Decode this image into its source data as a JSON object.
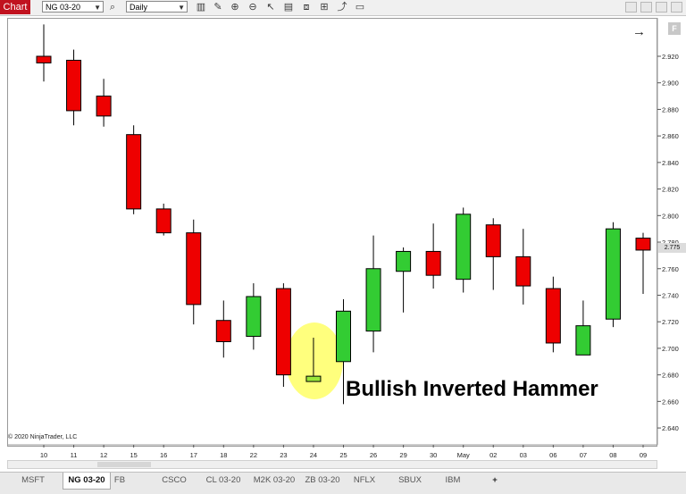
{
  "toolbar": {
    "chart_label": "Chart",
    "instrument": "NG 03-20",
    "interval": "Daily"
  },
  "tabs": [
    "MSFT",
    "NG 03-20",
    "FB",
    "CSCO",
    "CL 03-20",
    "M2K 03-20",
    "ZB 03-20",
    "NFLX",
    "SBUX",
    "IBM"
  ],
  "active_tab": 1,
  "add_tab_label": "+",
  "copyright": "© 2020 NinjaTrader, LLC",
  "f_button": "F",
  "current_price_label": "2.775",
  "chart_data": {
    "type": "candlestick",
    "title": "",
    "xlabel": "",
    "ylabel": "",
    "ylim": [
      2.631,
      2.948
    ],
    "y_ticks": [
      "2.920",
      "2.900",
      "2.880",
      "2.860",
      "2.840",
      "2.820",
      "2.800",
      "2.780",
      "2.760",
      "2.740",
      "2.720",
      "2.700",
      "2.680",
      "2.660",
      "2.640"
    ],
    "categories": [
      "10",
      "11",
      "12",
      "15",
      "16",
      "17",
      "18",
      "22",
      "23",
      "24",
      "25",
      "26",
      "29",
      "30",
      "May",
      "02",
      "03",
      "06",
      "07",
      "08",
      "09"
    ],
    "series": [
      {
        "x": "10",
        "open": 2.92,
        "high": 2.944,
        "low": 2.901,
        "close": 2.915
      },
      {
        "x": "11",
        "open": 2.917,
        "high": 2.925,
        "low": 2.868,
        "close": 2.879
      },
      {
        "x": "12",
        "open": 2.89,
        "high": 2.903,
        "low": 2.867,
        "close": 2.875
      },
      {
        "x": "15",
        "open": 2.861,
        "high": 2.868,
        "low": 2.801,
        "close": 2.805
      },
      {
        "x": "16",
        "open": 2.805,
        "high": 2.809,
        "low": 2.785,
        "close": 2.787
      },
      {
        "x": "17",
        "open": 2.787,
        "high": 2.797,
        "low": 2.718,
        "close": 2.733
      },
      {
        "x": "18",
        "open": 2.721,
        "high": 2.736,
        "low": 2.693,
        "close": 2.705
      },
      {
        "x": "22",
        "open": 2.709,
        "high": 2.749,
        "low": 2.699,
        "close": 2.739
      },
      {
        "x": "23",
        "open": 2.745,
        "high": 2.749,
        "low": 2.671,
        "close": 2.68
      },
      {
        "x": "24",
        "open": 2.675,
        "high": 2.708,
        "low": 2.675,
        "close": 2.679
      },
      {
        "x": "25",
        "open": 2.69,
        "high": 2.737,
        "low": 2.658,
        "close": 2.728
      },
      {
        "x": "26",
        "open": 2.713,
        "high": 2.785,
        "low": 2.697,
        "close": 2.76
      },
      {
        "x": "29",
        "open": 2.758,
        "high": 2.776,
        "low": 2.727,
        "close": 2.773
      },
      {
        "x": "30",
        "open": 2.773,
        "high": 2.794,
        "low": 2.745,
        "close": 2.755
      },
      {
        "x": "May",
        "open": 2.752,
        "high": 2.806,
        "low": 2.742,
        "close": 2.801
      },
      {
        "x": "02",
        "open": 2.793,
        "high": 2.798,
        "low": 2.744,
        "close": 2.769
      },
      {
        "x": "03",
        "open": 2.769,
        "high": 2.79,
        "low": 2.733,
        "close": 2.747
      },
      {
        "x": "06",
        "open": 2.745,
        "high": 2.754,
        "low": 2.697,
        "close": 2.704
      },
      {
        "x": "07",
        "open": 2.695,
        "high": 2.736,
        "low": 2.695,
        "close": 2.717
      },
      {
        "x": "08",
        "open": 2.722,
        "high": 2.795,
        "low": 2.716,
        "close": 2.79
      },
      {
        "x": "09",
        "open": 2.783,
        "high": 2.787,
        "low": 2.741,
        "close": 2.774
      }
    ],
    "highlight": {
      "x": "24",
      "label": "Bullish Inverted Hammer"
    },
    "colors": {
      "up": "#33cc33",
      "down": "#ee0000",
      "highlight_up": "#99e63a",
      "wick": "#000000",
      "highlight_fill": "#ffff66"
    }
  }
}
